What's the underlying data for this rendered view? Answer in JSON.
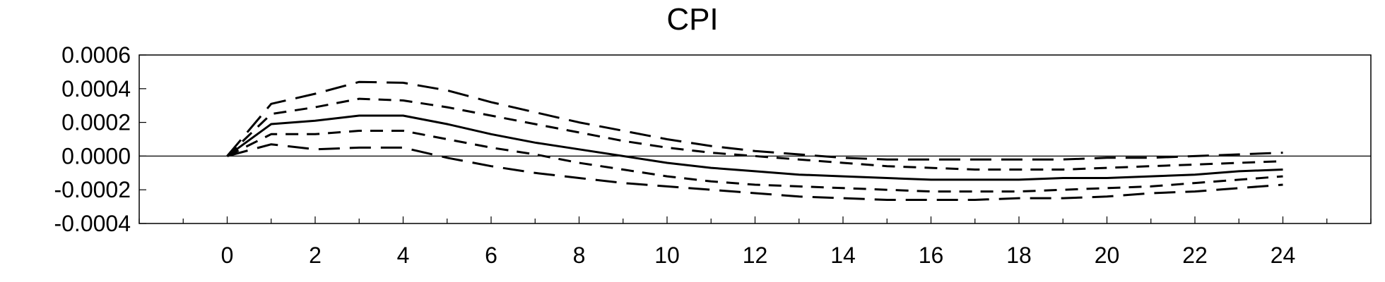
{
  "chart_data": {
    "type": "line",
    "title": "CPI",
    "xlabel": "",
    "ylabel": "",
    "xlim": [
      -2,
      26
    ],
    "ylim": [
      -0.0004,
      0.0006
    ],
    "x_ticks": [
      0,
      2,
      4,
      6,
      8,
      10,
      12,
      14,
      16,
      18,
      20,
      22,
      24
    ],
    "x_tick_labels": [
      "0",
      "2",
      "4",
      "6",
      "8",
      "10",
      "12",
      "14",
      "16",
      "18",
      "20",
      "22",
      "24"
    ],
    "y_ticks": [
      0.0006,
      0.0004,
      0.0002,
      0.0,
      -0.0002,
      -0.0004
    ],
    "y_tick_labels": [
      "0.0006",
      "0.0004",
      "0.0002",
      "0.0000",
      "-0.0002",
      "-0.0004"
    ],
    "zero_line": true,
    "grid": false,
    "legend": "none",
    "x": [
      0,
      1,
      2,
      3,
      4,
      5,
      6,
      7,
      8,
      9,
      10,
      11,
      12,
      13,
      14,
      15,
      16,
      17,
      18,
      19,
      20,
      21,
      22,
      23,
      24
    ],
    "series": [
      {
        "style": "long-dash",
        "values": [
          0.0,
          0.00031,
          0.00037,
          0.00044,
          0.000435,
          0.00039,
          0.00032,
          0.00026,
          0.0002,
          0.00015,
          0.0001,
          6e-05,
          3e-05,
          1e-05,
          -1e-05,
          -2e-05,
          -2e-05,
          -2e-05,
          -2e-05,
          -2e-05,
          -1e-05,
          -1e-05,
          0.0,
          1e-05,
          2e-05
        ]
      },
      {
        "style": "short-dash",
        "values": [
          0.0,
          0.00025,
          0.00029,
          0.00034,
          0.00033,
          0.00029,
          0.00024,
          0.00019,
          0.00014,
          9e-05,
          5e-05,
          2e-05,
          0.0,
          -2e-05,
          -4e-05,
          -6e-05,
          -7e-05,
          -8e-05,
          -8e-05,
          -8e-05,
          -7e-05,
          -6e-05,
          -5e-05,
          -4e-05,
          -3e-05
        ]
      },
      {
        "style": "solid",
        "values": [
          0.0,
          0.00019,
          0.00021,
          0.00024,
          0.00024,
          0.00019,
          0.00013,
          8e-05,
          4e-05,
          0.0,
          -4e-05,
          -7e-05,
          -9e-05,
          -0.00011,
          -0.00012,
          -0.00013,
          -0.00014,
          -0.00014,
          -0.00014,
          -0.00013,
          -0.00013,
          -0.00012,
          -0.00011,
          -9e-05,
          -8e-05
        ]
      },
      {
        "style": "short-dash",
        "values": [
          0.0,
          0.00013,
          0.00013,
          0.00015,
          0.00015,
          0.0001,
          5e-05,
          1e-05,
          -4e-05,
          -8e-05,
          -0.00012,
          -0.00015,
          -0.00017,
          -0.00018,
          -0.00019,
          -0.0002,
          -0.00021,
          -0.00021,
          -0.00021,
          -0.0002,
          -0.00019,
          -0.00018,
          -0.00016,
          -0.00014,
          -0.00012
        ]
      },
      {
        "style": "long-dash",
        "values": [
          0.0,
          7e-05,
          4e-05,
          5e-05,
          5e-05,
          -1e-05,
          -6e-05,
          -0.0001,
          -0.00013,
          -0.00016,
          -0.00018,
          -0.0002,
          -0.00022,
          -0.00024,
          -0.00025,
          -0.00026,
          -0.00026,
          -0.00026,
          -0.00025,
          -0.00025,
          -0.00024,
          -0.00022,
          -0.00021,
          -0.00019,
          -0.00017
        ]
      }
    ]
  }
}
